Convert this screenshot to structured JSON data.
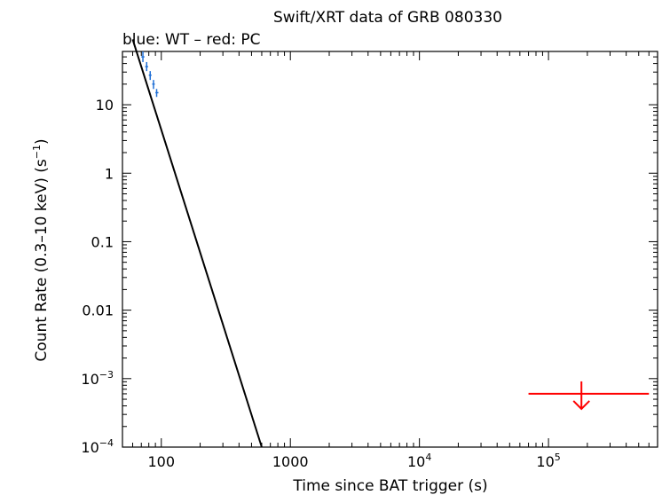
{
  "chart_data": {
    "type": "scatter",
    "title": "Swift/XRT data of GRB 080330",
    "subtitle": "blue: WT – red: PC",
    "xlabel": "Time since BAT trigger (s)",
    "ylabel_main": "Count Rate (0.3–10 keV) (s",
    "ylabel_sup": "−1",
    "ylabel_end": ")",
    "xscale": "log",
    "yscale": "log",
    "xlim": [
      50,
      700000
    ],
    "ylim": [
      0.0001,
      60
    ],
    "x_ticks": [
      {
        "value": 100,
        "label": "100"
      },
      {
        "value": 1000,
        "label": "1000"
      },
      {
        "value": 10000,
        "base": "10",
        "exp": "4"
      },
      {
        "value": 100000,
        "base": "10",
        "exp": "5"
      }
    ],
    "y_ticks": [
      {
        "value": 10,
        "label": "10"
      },
      {
        "value": 1,
        "label": "1"
      },
      {
        "value": 0.1,
        "label": "0.1"
      },
      {
        "value": 0.01,
        "label": "0.01"
      },
      {
        "value": 0.001,
        "base": "10",
        "exp": "−3"
      },
      {
        "value": 0.0001,
        "base": "10",
        "exp": "−4"
      }
    ],
    "series": [
      {
        "mode": "WT",
        "color": "#1f6fd6",
        "points": [
          {
            "x": 72,
            "y": 50,
            "xerr": [
              70,
              74
            ],
            "yerr": [
              42,
              60
            ]
          },
          {
            "x": 77,
            "y": 36,
            "xerr": [
              75,
              79
            ],
            "yerr": [
              31,
              42
            ]
          },
          {
            "x": 82,
            "y": 27,
            "xerr": [
              80,
              84
            ],
            "yerr": [
              23,
              31
            ]
          },
          {
            "x": 87,
            "y": 20,
            "xerr": [
              85,
              89
            ],
            "yerr": [
              17,
              23
            ]
          },
          {
            "x": 92,
            "y": 15,
            "xerr": [
              90,
              95
            ],
            "yerr": [
              13,
              17
            ]
          }
        ]
      },
      {
        "mode": "PC",
        "color": "#ff0000",
        "upper_limits": [
          {
            "x": 180000,
            "y": 0.0006,
            "xrange": [
              70000,
              600000
            ]
          }
        ]
      }
    ],
    "model": {
      "color": "#000000",
      "points": [
        {
          "x": 60,
          "y": 90
        },
        {
          "x": 600,
          "y": 0.0001
        }
      ]
    }
  }
}
